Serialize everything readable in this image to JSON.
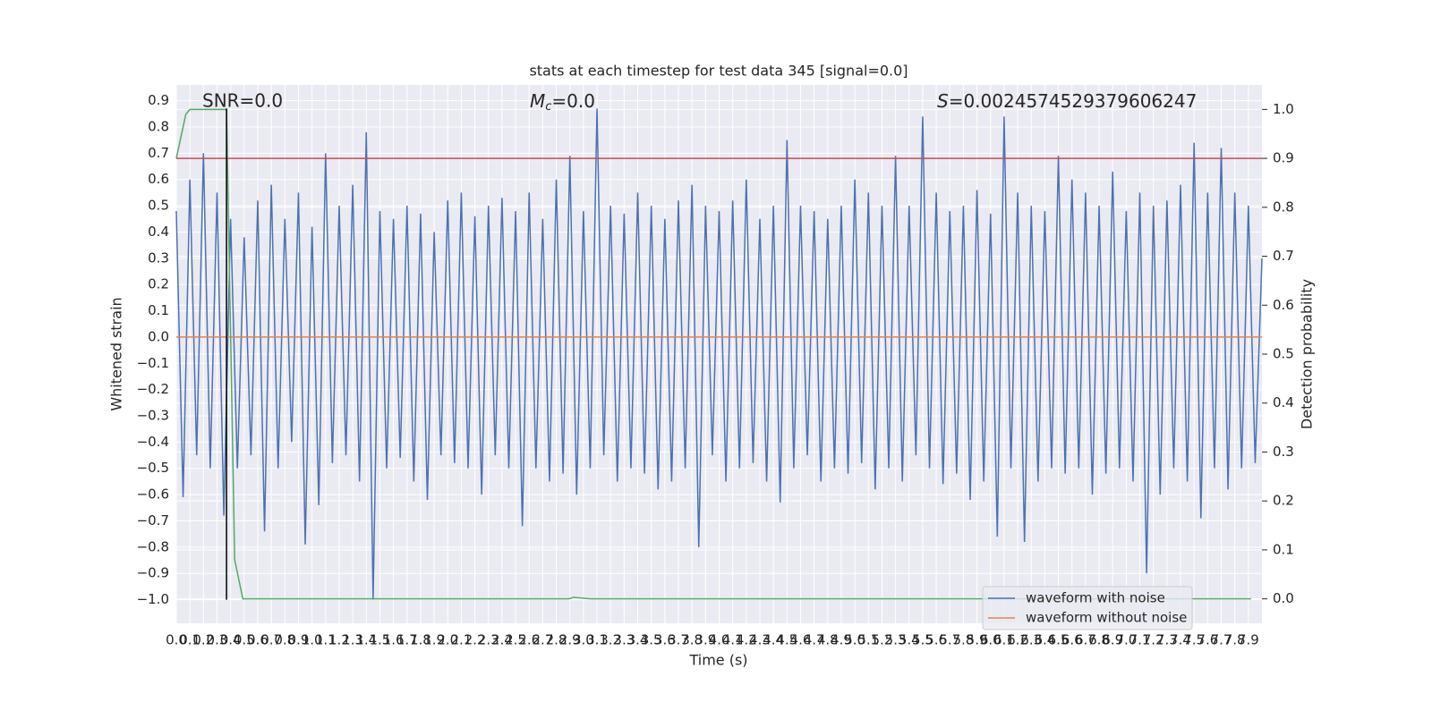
{
  "chart_data": {
    "type": "line",
    "title": "stats at each timestep for test data 345 [signal=0.0]",
    "xlabel": "Time (s)",
    "ylabel": "Whitened strain",
    "y2label": "Detection probability",
    "annotations": [
      {
        "text": "SNR=0.0"
      },
      {
        "symbol": "M",
        "subscript": "c",
        "text": "=0.0"
      },
      {
        "symbol": "S",
        "text": "=0.0024574529379606247"
      }
    ],
    "xlim": [
      0,
      8.0
    ],
    "ylim": [
      -1.09,
      0.96
    ],
    "y2lim": [
      -0.05,
      1.05
    ],
    "grid": true,
    "legend": "lower right",
    "xticks": [
      {
        "value": 0,
        "label": "0.0"
      },
      0.1,
      0.2,
      0.3,
      0.4,
      0.5,
      0.6,
      0.7,
      0.8,
      0.9,
      {
        "value": 1,
        "label": "1.0"
      },
      1.1,
      1.2,
      1.3,
      1.4,
      1.5,
      1.6,
      1.7,
      1.8,
      1.9,
      {
        "value": 2,
        "label": "2.0"
      },
      2.1,
      2.2,
      2.3,
      2.4,
      2.5,
      2.6,
      2.7,
      2.8,
      2.9,
      {
        "value": 3,
        "label": "3.0"
      },
      3.1,
      3.2,
      3.3,
      3.4,
      3.5,
      3.6,
      3.7,
      3.8,
      3.9,
      {
        "value": 4,
        "label": "4.0"
      },
      4.1,
      4.2,
      4.3,
      4.4,
      4.5,
      4.6,
      4.7,
      4.8,
      4.9,
      {
        "value": 5,
        "label": "5.0"
      },
      5.1,
      5.2,
      5.3,
      5.4,
      5.5,
      5.6,
      5.7,
      5.8,
      5.9,
      {
        "value": 6,
        "label": "6.0"
      },
      6.1,
      6.2,
      6.3,
      6.4,
      6.5,
      6.6,
      6.7,
      6.8,
      6.9,
      {
        "value": 7,
        "label": "7.0"
      },
      7.1,
      7.2,
      7.3,
      7.4,
      7.5,
      7.6,
      7.7,
      7.8,
      7.9
    ],
    "yticks": [
      0.9,
      0.8,
      0.7,
      0.6,
      0.5,
      0.4,
      0.3,
      0.2,
      0.1,
      {
        "value": 0,
        "label": "0.0"
      },
      {
        "value": -0.1,
        "label": "−0.1"
      },
      {
        "value": -0.2,
        "label": "−0.2"
      },
      {
        "value": -0.3,
        "label": "−0.3"
      },
      {
        "value": -0.4,
        "label": "−0.4"
      },
      {
        "value": -0.5,
        "label": "−0.5"
      },
      {
        "value": -0.6,
        "label": "−0.6"
      },
      {
        "value": -0.7,
        "label": "−0.7"
      },
      {
        "value": -0.8,
        "label": "−0.8"
      },
      {
        "value": -0.9,
        "label": "−0.9"
      },
      {
        "value": -1,
        "label": "−1.0"
      }
    ],
    "y2ticks": [
      {
        "value": 0,
        "label": "0.0"
      },
      0.1,
      0.2,
      0.3,
      0.4,
      0.5,
      0.6,
      0.7,
      0.8,
      0.9,
      {
        "value": 1,
        "label": "1.0"
      }
    ],
    "series": [
      {
        "name": "waveform with noise",
        "color": "#4c72b0",
        "x": [
          0,
          0.05,
          0.1,
          0.15,
          0.2,
          0.25,
          0.3,
          0.35,
          0.4,
          0.45,
          0.5,
          0.55,
          0.6,
          0.65,
          0.7,
          0.75,
          0.8,
          0.85,
          0.9,
          0.95,
          1,
          1.05,
          1.1,
          1.15,
          1.2,
          1.25,
          1.3,
          1.35,
          1.4,
          1.45,
          1.5,
          1.55,
          1.6,
          1.65,
          1.7,
          1.75,
          1.8,
          1.85,
          1.9,
          1.95,
          2,
          2.05,
          2.1,
          2.15,
          2.2,
          2.25,
          2.3,
          2.35,
          2.4,
          2.45,
          2.5,
          2.55,
          2.6,
          2.65,
          2.7,
          2.75,
          2.8,
          2.85,
          2.9,
          2.95,
          3,
          3.05,
          3.1,
          3.15,
          3.2,
          3.25,
          3.3,
          3.35,
          3.4,
          3.45,
          3.5,
          3.55,
          3.6,
          3.65,
          3.7,
          3.75,
          3.8,
          3.85,
          3.9,
          3.95,
          4,
          4.05,
          4.1,
          4.15,
          4.2,
          4.25,
          4.3,
          4.35,
          4.4,
          4.45,
          4.5,
          4.55,
          4.6,
          4.65,
          4.7,
          4.75,
          4.8,
          4.85,
          4.9,
          4.95,
          5,
          5.05,
          5.1,
          5.15,
          5.2,
          5.25,
          5.3,
          5.35,
          5.4,
          5.45,
          5.5,
          5.55,
          5.6,
          5.65,
          5.7,
          5.75,
          5.8,
          5.85,
          5.9,
          5.95,
          6,
          6.05,
          6.1,
          6.15,
          6.2,
          6.25,
          6.3,
          6.35,
          6.4,
          6.45,
          6.5,
          6.55,
          6.6,
          6.65,
          6.7,
          6.75,
          6.8,
          6.85,
          6.9,
          6.95,
          7,
          7.05,
          7.1,
          7.15,
          7.2,
          7.25,
          7.3,
          7.35,
          7.4,
          7.45,
          7.5,
          7.55,
          7.6,
          7.65,
          7.7,
          7.75,
          7.8,
          7.85,
          7.9,
          7.95,
          8
        ],
        "values": [
          0.48,
          -0.61,
          0.6,
          -0.45,
          0.7,
          -0.5,
          0.55,
          -0.68,
          0.45,
          -0.5,
          0.38,
          -0.45,
          0.52,
          -0.74,
          0.58,
          -0.5,
          0.45,
          -0.4,
          0.55,
          -0.79,
          0.42,
          -0.64,
          0.7,
          -0.48,
          0.5,
          -0.45,
          0.58,
          -0.55,
          0.78,
          -1.0,
          0.48,
          -0.5,
          0.45,
          -0.46,
          0.5,
          -0.55,
          0.47,
          -0.62,
          0.4,
          -0.45,
          0.52,
          -0.48,
          0.55,
          -0.5,
          0.46,
          -0.6,
          0.5,
          -0.45,
          0.53,
          -0.5,
          0.48,
          -0.72,
          0.55,
          -0.5,
          0.45,
          -0.55,
          0.6,
          -0.52,
          0.69,
          -0.6,
          0.48,
          -0.5,
          0.87,
          -0.45,
          0.5,
          -0.55,
          0.47,
          -0.5,
          0.55,
          -0.52,
          0.5,
          -0.58,
          0.45,
          -0.55,
          0.52,
          -0.5,
          0.58,
          -0.8,
          0.5,
          -0.45,
          0.48,
          -0.55,
          0.52,
          -0.5,
          0.6,
          -0.48,
          0.45,
          -0.55,
          0.5,
          -0.63,
          0.75,
          -0.5,
          0.5,
          -0.45,
          0.48,
          -0.55,
          0.45,
          -0.5,
          0.5,
          -0.52,
          0.6,
          -0.48,
          0.55,
          -0.58,
          0.5,
          -0.5,
          0.69,
          -0.55,
          0.5,
          -0.45,
          0.84,
          -0.5,
          0.55,
          -0.56,
          0.48,
          -0.52,
          0.5,
          -0.62,
          0.56,
          -0.55,
          0.47,
          -0.76,
          0.84,
          -0.5,
          0.55,
          -0.78,
          0.5,
          -0.55,
          0.48,
          -0.5,
          0.69,
          -0.52,
          0.6,
          -0.5,
          0.55,
          -0.6,
          0.5,
          -0.52,
          0.63,
          -0.5,
          0.48,
          -0.55,
          0.55,
          -0.9,
          0.5,
          -0.6,
          0.52,
          -0.5,
          0.58,
          -0.55,
          0.74,
          -0.69,
          0.55,
          -0.5,
          0.72,
          -0.58,
          0.55,
          -0.5,
          0.5,
          -0.48,
          0.3
        ]
      },
      {
        "name": "waveform without noise",
        "color": "#dd8452",
        "x": [
          0,
          8.0
        ],
        "values": [
          0,
          0
        ]
      }
    ],
    "detection_probability": {
      "color": "#55a868",
      "axis": "y2",
      "x": [
        0,
        0.07,
        0.1,
        0.37,
        0.43,
        0.49,
        2.89,
        2.93,
        3.05,
        7.92
      ],
      "values": [
        0.9,
        0.99,
        1.0,
        1.0,
        0.08,
        0.0,
        0.0,
        0.003,
        0.0,
        0.0
      ]
    },
    "threshold": {
      "value": 0.9,
      "axis": "y2",
      "color": "#c44e52"
    },
    "vline": {
      "x": 0.37,
      "ymin": -1.0,
      "ymax": 0.87,
      "color": "#000000"
    }
  }
}
